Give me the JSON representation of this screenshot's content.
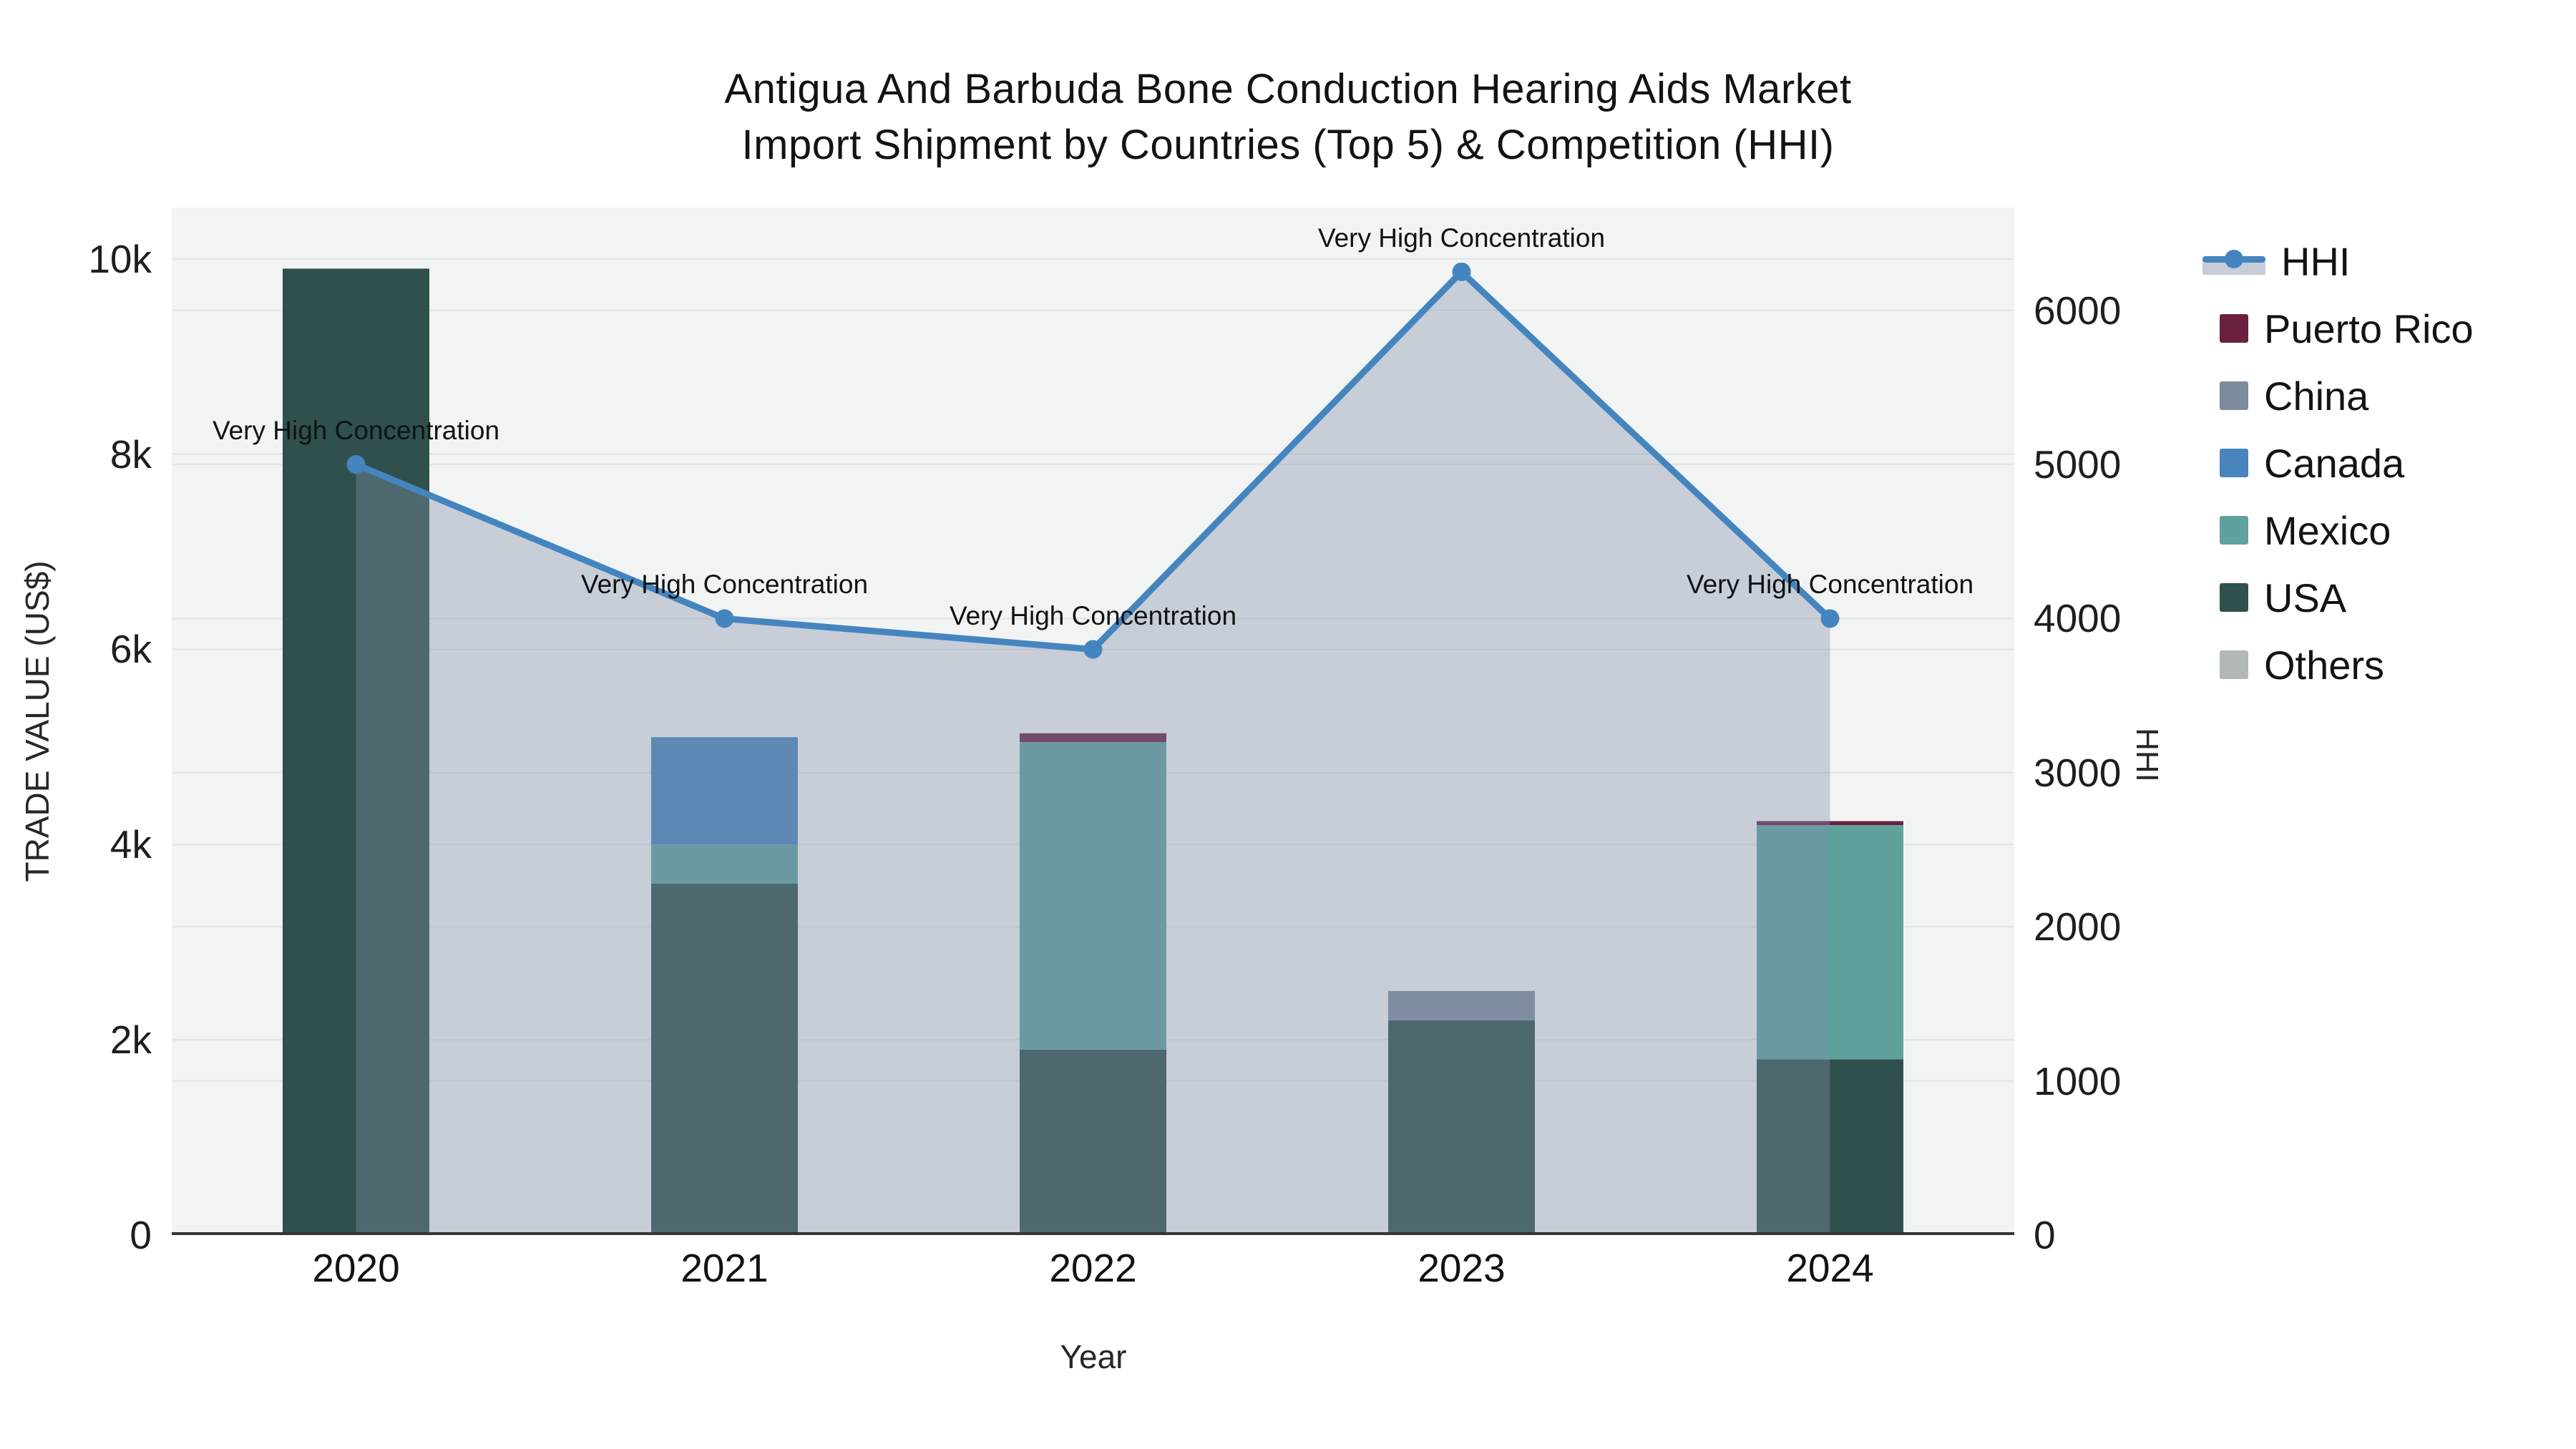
{
  "title": {
    "line1": "Antigua And Barbuda Bone Conduction Hearing Aids Market",
    "line2": "Import Shipment by Countries (Top 5) & Competition (HHI)"
  },
  "axes": {
    "x": {
      "title": "Year",
      "ticks": [
        "2020",
        "2021",
        "2022",
        "2023",
        "2024"
      ]
    },
    "y_left": {
      "title": "TRADE VALUE (US$)",
      "ticks": [
        {
          "label": "0",
          "value": 0
        },
        {
          "label": "2k",
          "value": 2000
        },
        {
          "label": "4k",
          "value": 4000
        },
        {
          "label": "6k",
          "value": 6000
        },
        {
          "label": "8k",
          "value": 8000
        },
        {
          "label": "10k",
          "value": 10000
        }
      ]
    },
    "y_right": {
      "title": "HHI",
      "ticks": [
        {
          "label": "0",
          "value": 0
        },
        {
          "label": "1000",
          "value": 1000
        },
        {
          "label": "2000",
          "value": 2000
        },
        {
          "label": "3000",
          "value": 3000
        },
        {
          "label": "4000",
          "value": 4000
        },
        {
          "label": "5000",
          "value": 5000
        },
        {
          "label": "6000",
          "value": 6000
        }
      ]
    }
  },
  "legend": {
    "items": [
      {
        "label": "HHI",
        "type": "line",
        "color": "#4585bf"
      },
      {
        "label": "Puerto Rico",
        "type": "swatch",
        "color": "#6b2040"
      },
      {
        "label": "China",
        "type": "swatch",
        "color": "#7d8c9c"
      },
      {
        "label": "Canada",
        "type": "swatch",
        "color": "#4a84bd"
      },
      {
        "label": "Mexico",
        "type": "swatch",
        "color": "#5fa19d"
      },
      {
        "label": "USA",
        "type": "swatch",
        "color": "#2f504d"
      },
      {
        "label": "Others",
        "type": "swatch",
        "color": "#b2b8b8"
      }
    ]
  },
  "colors": {
    "plot_bg": "#f2f4f3",
    "grid": "#e3e5e4",
    "axis_line": "#333638",
    "area_fill": "rgba(130,145,170,0.38)",
    "hhi_line": "#4585bf"
  },
  "chart_data": {
    "type": "bar",
    "title": "Antigua And Barbuda Bone Conduction Hearing Aids Market Import Shipment by Countries (Top 5) & Competition (HHI)",
    "xlabel": "Year",
    "ylabel_left": "TRADE VALUE (US$)",
    "ylabel_right": "HHI",
    "categories": [
      "2020",
      "2021",
      "2022",
      "2023",
      "2024"
    ],
    "stacked": true,
    "grid": true,
    "legend_position": "right",
    "ylim_left": [
      0,
      10526
    ],
    "ylim_right": [
      0,
      6667
    ],
    "series": [
      {
        "name": "USA",
        "color": "#2f504d",
        "values": [
          9900,
          3600,
          1900,
          2200,
          1800
        ]
      },
      {
        "name": "Mexico",
        "color": "#5fa19d",
        "values": [
          0,
          400,
          3150,
          0,
          2400
        ]
      },
      {
        "name": "Canada",
        "color": "#4a84bd",
        "values": [
          0,
          1100,
          0,
          0,
          0
        ]
      },
      {
        "name": "China",
        "color": "#7d8c9c",
        "values": [
          0,
          0,
          0,
          300,
          0
        ]
      },
      {
        "name": "Puerto Rico",
        "color": "#6b2040",
        "values": [
          0,
          0,
          90,
          0,
          40
        ]
      },
      {
        "name": "Others",
        "color": "#b2b8b8",
        "values": [
          0,
          0,
          0,
          0,
          0
        ]
      }
    ],
    "line_series": {
      "name": "HHI",
      "color": "#4585bf",
      "axis": "right",
      "values": [
        5000,
        4000,
        3800,
        6250,
        4000
      ],
      "area_fill": true,
      "annotation": "Very High Concentration"
    }
  }
}
